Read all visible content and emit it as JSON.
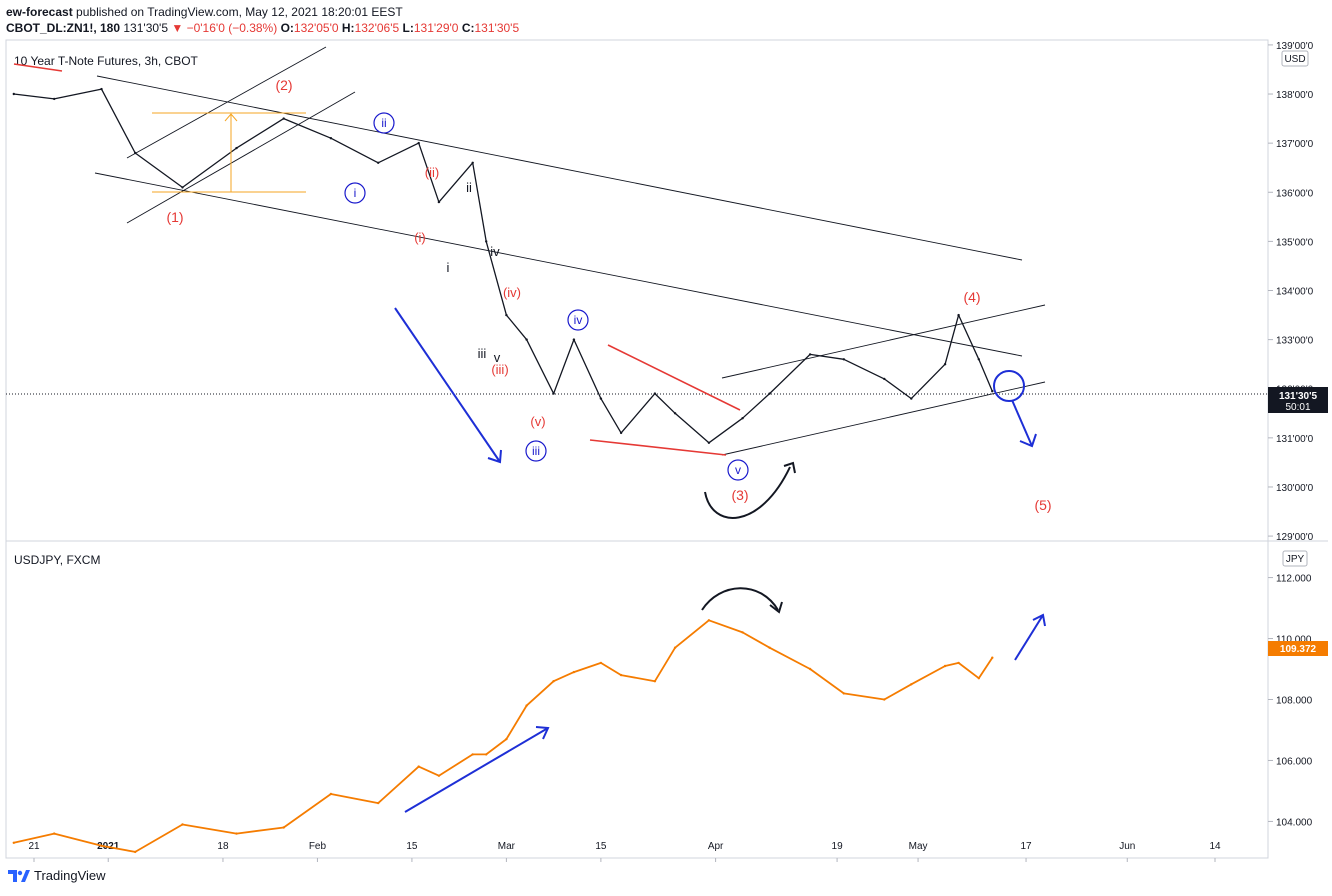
{
  "header": {
    "publisher": "ew-forecast",
    "published_text": "published on TradingView.com, May 12, 2021 18:20:01 EEST",
    "symbol": "CBOT_DL:ZN1!, 180",
    "last": "131'30'5",
    "change": "−0'16'0 (−0.38%)",
    "o_label": "O:",
    "o": "132'05'0",
    "h_label": "H:",
    "h": "132'06'5",
    "l_label": "L:",
    "l": "131'29'0",
    "c_label": "C:",
    "c": "131'30'5"
  },
  "footer": {
    "brand": "TradingView"
  },
  "colors": {
    "upper_series": "#131722",
    "lower_series": "#f57c00",
    "wave_red": "#e53935",
    "wave_blue": "#1a1acc",
    "fib": "#f5a623",
    "arrow_blue": "#1e2fd6",
    "price_tag": "#131722"
  },
  "chart_data": [
    {
      "type": "line",
      "title": "10 Year T-Note Futures, 3h, CBOT",
      "currency": "USD",
      "last_price_label": "131'30'5",
      "countdown": "50:01",
      "ylim": [
        128.9,
        139.1
      ],
      "y_tick_values": [
        129,
        130,
        131,
        132,
        133,
        134,
        135,
        136,
        137,
        138,
        139
      ],
      "y_tick_labels": [
        "129'00'0",
        "130'00'0",
        "131'00'0",
        "132'00'0",
        "133'00'0",
        "134'00'0",
        "135'00'0",
        "136'00'0",
        "137'00'0",
        "138'00'0",
        "139'00'0"
      ],
      "x": [
        "2020-12-18",
        "2020-12-24",
        "2020-12-31",
        "2021-01-05",
        "2021-01-12",
        "2021-01-20",
        "2021-01-27",
        "2021-02-03",
        "2021-02-10",
        "2021-02-16",
        "2021-02-19",
        "2021-02-24",
        "2021-02-26",
        "2021-03-01",
        "2021-03-04",
        "2021-03-08",
        "2021-03-11",
        "2021-03-15",
        "2021-03-18",
        "2021-03-23",
        "2021-03-26",
        "2021-03-31",
        "2021-04-05",
        "2021-04-09",
        "2021-04-15",
        "2021-04-20",
        "2021-04-26",
        "2021-04-30",
        "2021-05-05",
        "2021-05-07",
        "2021-05-10",
        "2021-05-12"
      ],
      "values": [
        138.0,
        137.9,
        138.1,
        136.8,
        136.1,
        136.9,
        137.5,
        137.1,
        136.6,
        137.0,
        135.8,
        136.6,
        135.0,
        133.5,
        133.0,
        131.9,
        133.0,
        131.8,
        131.1,
        131.9,
        131.5,
        130.9,
        131.4,
        131.9,
        132.7,
        132.6,
        132.2,
        131.8,
        132.5,
        133.5,
        132.6,
        131.95
      ],
      "annotations": {
        "red_waves": [
          "(1)",
          "(2)",
          "(3)",
          "(4)",
          "(5)"
        ],
        "red_minor": [
          "(i)",
          "(ii)",
          "(iii)",
          "(iv)",
          "(v)"
        ],
        "blue_circled": [
          "i",
          "ii",
          "iii",
          "iv",
          "v"
        ],
        "black_minor": [
          "i",
          "ii",
          "iii",
          "iv",
          "v"
        ]
      }
    },
    {
      "type": "line",
      "title": "USDJPY, FXCM",
      "currency": "JPY",
      "last_price_label": "109.372",
      "ylim": [
        102.8,
        113.2
      ],
      "y_tick_values": [
        104,
        106,
        108,
        110,
        112
      ],
      "y_tick_labels": [
        "104.000",
        "106.000",
        "108.000",
        "110.000",
        "112.000"
      ],
      "x": [
        "2020-12-18",
        "2020-12-24",
        "2020-12-31",
        "2021-01-05",
        "2021-01-12",
        "2021-01-20",
        "2021-01-27",
        "2021-02-03",
        "2021-02-10",
        "2021-02-16",
        "2021-02-19",
        "2021-02-24",
        "2021-02-26",
        "2021-03-01",
        "2021-03-04",
        "2021-03-08",
        "2021-03-11",
        "2021-03-15",
        "2021-03-18",
        "2021-03-23",
        "2021-03-26",
        "2021-03-31",
        "2021-04-05",
        "2021-04-09",
        "2021-04-15",
        "2021-04-20",
        "2021-04-26",
        "2021-04-30",
        "2021-05-05",
        "2021-05-07",
        "2021-05-10",
        "2021-05-12"
      ],
      "values": [
        103.3,
        103.6,
        103.2,
        103.0,
        103.9,
        103.6,
        103.8,
        104.9,
        104.6,
        105.8,
        105.5,
        106.2,
        106.2,
        106.7,
        107.8,
        108.6,
        108.9,
        109.2,
        108.8,
        108.6,
        109.7,
        110.6,
        110.2,
        109.7,
        109.0,
        108.2,
        108.0,
        108.5,
        109.1,
        109.2,
        108.7,
        109.37
      ]
    }
  ],
  "x_axis": {
    "labels": [
      "21",
      "2021",
      "18",
      "Feb",
      "15",
      "Mar",
      "15",
      "Apr",
      "19",
      "May",
      "17",
      "Jun",
      "14"
    ],
    "dates": [
      "2020-12-21",
      "2021-01-01",
      "2021-01-18",
      "2021-02-01",
      "2021-02-15",
      "2021-03-01",
      "2021-03-15",
      "2021-04-01",
      "2021-04-19",
      "2021-05-01",
      "2021-05-17",
      "2021-06-01",
      "2021-06-14"
    ]
  }
}
